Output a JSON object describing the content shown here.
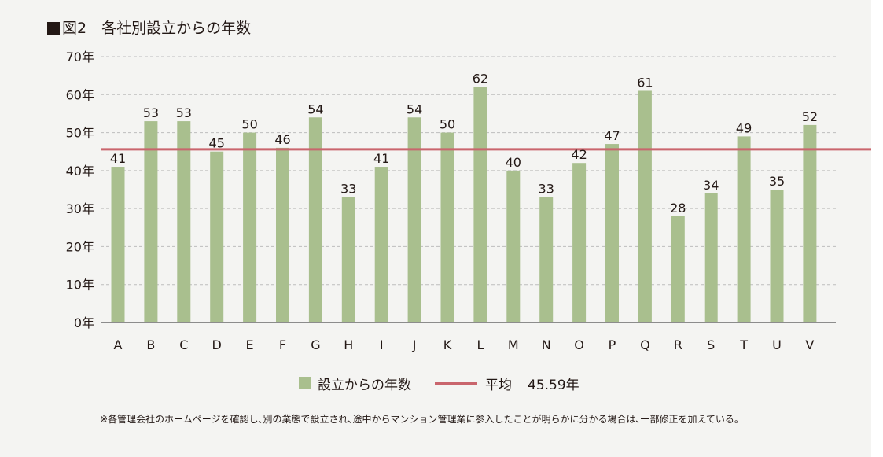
{
  "title": {
    "text": "図2　各社別設立からの年数"
  },
  "chart_data": {
    "type": "bar",
    "title": "図2　各社別設立からの年数",
    "categories": [
      "A",
      "B",
      "C",
      "D",
      "E",
      "F",
      "G",
      "H",
      "I",
      "J",
      "K",
      "L",
      "M",
      "N",
      "O",
      "P",
      "Q",
      "R",
      "S",
      "T",
      "U",
      "V"
    ],
    "series": [
      {
        "name": "設立からの年数",
        "values": [
          41,
          53,
          53,
          45,
          50,
          46,
          54,
          33,
          41,
          54,
          50,
          62,
          40,
          33,
          42,
          47,
          61,
          28,
          34,
          49,
          35,
          52
        ]
      }
    ],
    "average": {
      "name": "平均",
      "value": 45.59,
      "label": "45.59年"
    },
    "y_ticks": [
      0,
      10,
      20,
      30,
      40,
      50,
      60,
      70
    ],
    "y_tick_labels": [
      "0年",
      "10年",
      "20年",
      "30年",
      "40年",
      "50年",
      "60年",
      "70年"
    ],
    "ylim": [
      0,
      70
    ],
    "xlabel": "",
    "ylabel": "",
    "grid": true,
    "legend_position": "bottom-center",
    "colors": {
      "bar": "#a9bf8e",
      "average_line": "#c9656d",
      "grid": "#bdbdbd",
      "axis": "#8c8c8c",
      "text": "#231815"
    }
  },
  "legend": {
    "bar_label": "設立からの年数",
    "avg_label": "平均",
    "avg_value": "45.59年"
  },
  "footnote": "※各管理会社のホームページを確認し､別の業態で設立され､途中からマンション管理業に参入したことが明らかに分かる場合は､一部修正を加えている。"
}
